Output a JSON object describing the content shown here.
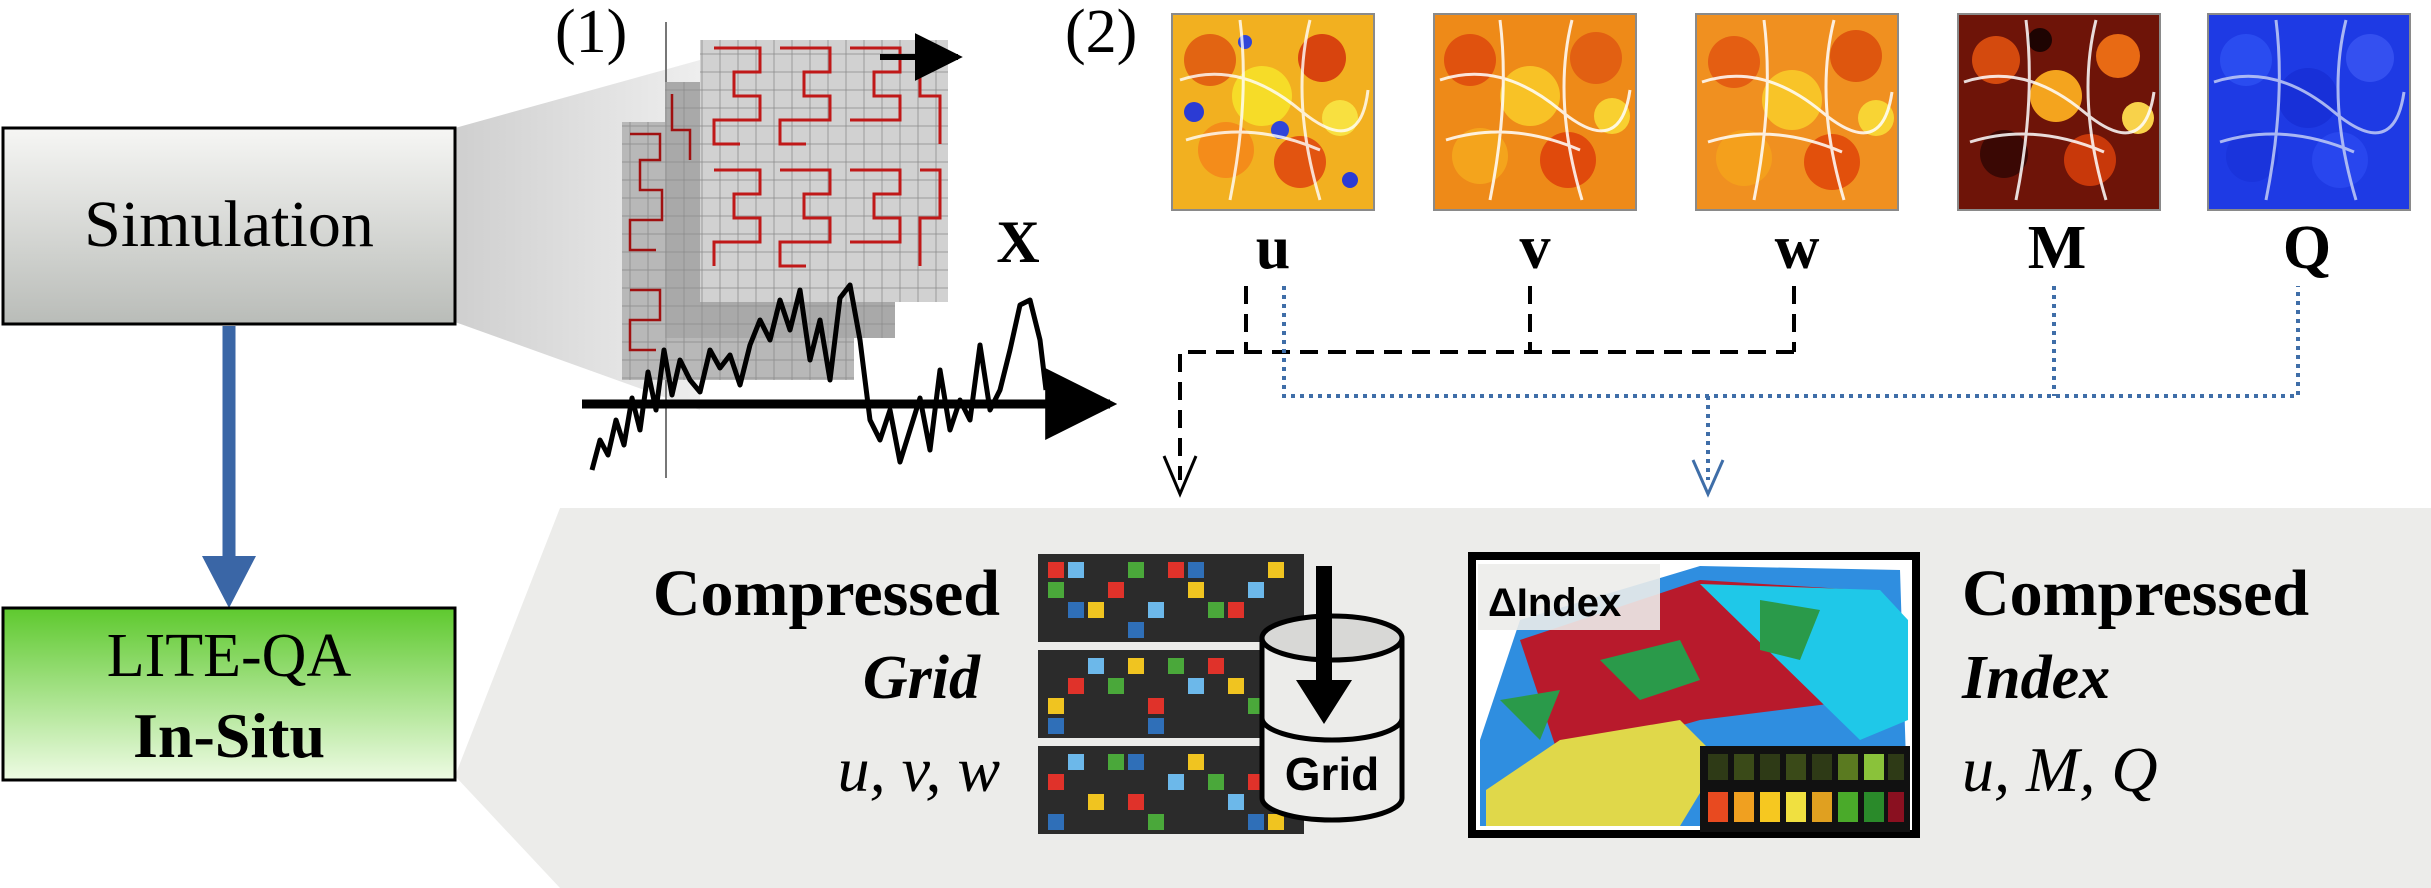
{
  "simulation": {
    "label": "Simulation"
  },
  "liteqa": {
    "line1": "LITE-QA",
    "line2": "In-Situ"
  },
  "panel1": {
    "label": "(1)",
    "axis_label": "X"
  },
  "panel2": {
    "label": "(2)",
    "fields": [
      {
        "name": "u",
        "colormap": "yellow-red-blue"
      },
      {
        "name": "v",
        "colormap": "orange"
      },
      {
        "name": "w",
        "colormap": "orange"
      },
      {
        "name": "M",
        "colormap": "dark-red-yellow"
      },
      {
        "name": "Q",
        "colormap": "blue"
      }
    ]
  },
  "grid_output": {
    "title": "Compressed",
    "subtitle": "Grid",
    "vars": "u, v, w",
    "db_label": "Grid"
  },
  "index_output": {
    "title": "Compressed",
    "subtitle": "Index",
    "vars": "u, M, Q",
    "delta_label": "ΔIndex"
  },
  "colors": {
    "arrow_blue": "#3a66a6",
    "liteqa_green": "#66cc33",
    "dotted_blue": "#3f6ea8",
    "panel_gray": "#ececea"
  }
}
